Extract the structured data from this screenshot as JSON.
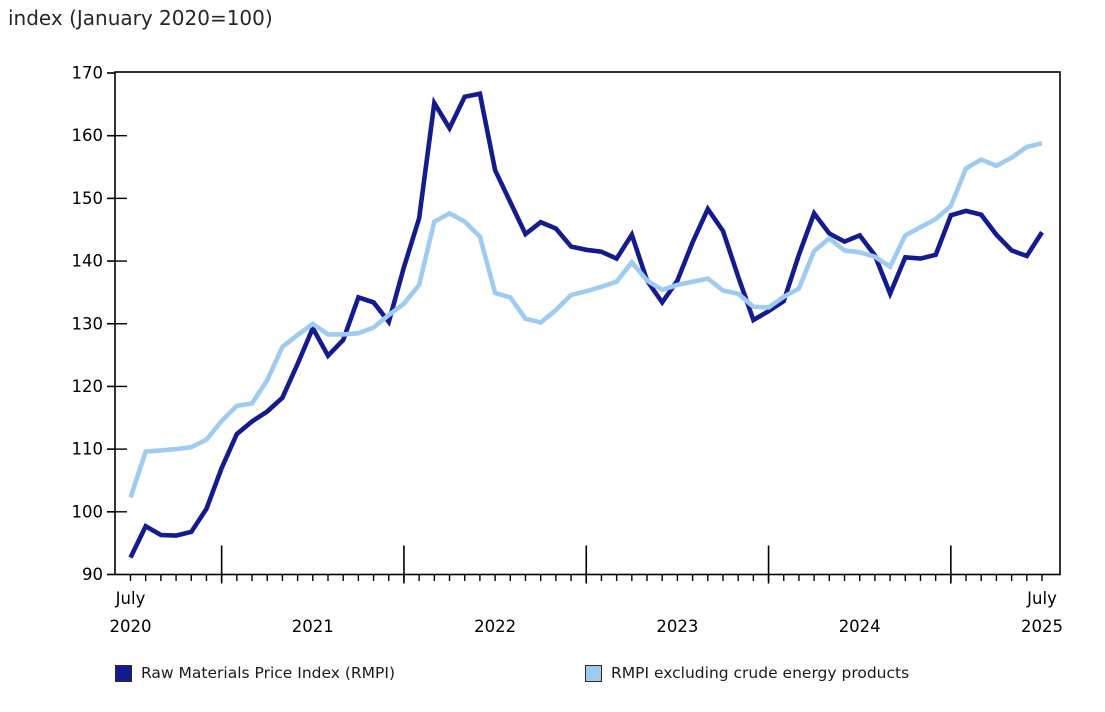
{
  "title": "index (January 2020=100)",
  "legend": {
    "items": [
      {
        "label": "Raw Materials Price Index (RMPI)",
        "color": "#141b8f"
      },
      {
        "label": "RMPI excluding crude energy products",
        "color": "#a0cbf0"
      }
    ]
  },
  "chart_data": {
    "type": "line",
    "title": "index (January 2020=100)",
    "x_unit": "month",
    "x_start": "2020-07",
    "x_end": "2025-07",
    "ylim": [
      90,
      170
    ],
    "y_ticks": [
      90,
      100,
      110,
      120,
      130,
      140,
      150,
      160,
      170
    ],
    "x_tick_labels": [
      {
        "line1": "July",
        "line2": "2020",
        "month_index": 0
      },
      {
        "line1": "",
        "line2": "2021",
        "month_index": 12
      },
      {
        "line1": "",
        "line2": "2022",
        "month_index": 24
      },
      {
        "line1": "",
        "line2": "2023",
        "month_index": 36
      },
      {
        "line1": "",
        "line2": "2024",
        "month_index": 48
      },
      {
        "line1": "July",
        "line2": "2025",
        "month_index": 60
      }
    ],
    "major_tick_month_indices": [
      6,
      18,
      30,
      42,
      54
    ],
    "grid": false,
    "legend_position": "bottom",
    "series": [
      {
        "name": "Raw Materials Price Index (RMPI)",
        "color": "#141b8f",
        "values": [
          92.7,
          97.7,
          96.3,
          96.2,
          96.8,
          100.5,
          107.0,
          112.4,
          114.4,
          116.0,
          118.2,
          123.6,
          129.3,
          124.9,
          127.4,
          134.2,
          133.4,
          130.3,
          139.0,
          146.8,
          165.2,
          161.2,
          166.2,
          166.7,
          154.5,
          149.4,
          144.3,
          146.2,
          145.2,
          142.3,
          141.8,
          141.5,
          140.4,
          144.2,
          136.9,
          133.4,
          136.9,
          143.0,
          148.3,
          144.8,
          137.5,
          130.6,
          132.0,
          133.6,
          141.0,
          147.6,
          144.4,
          143.1,
          144.1,
          140.9,
          134.8,
          140.6,
          140.4,
          141.0,
          147.3,
          148.0,
          147.4,
          144.2,
          141.7,
          140.8,
          144.6
        ]
      },
      {
        "name": "RMPI excluding crude energy products",
        "color": "#a0cbf0",
        "values": [
          102.3,
          109.6,
          109.8,
          110.0,
          110.3,
          111.5,
          114.5,
          116.9,
          117.3,
          121.0,
          126.3,
          128.2,
          130.0,
          128.3,
          128.3,
          128.5,
          129.4,
          131.4,
          133.2,
          136.2,
          146.3,
          147.6,
          146.3,
          143.9,
          134.9,
          134.2,
          130.8,
          130.2,
          132.2,
          134.6,
          135.2,
          135.9,
          136.7,
          139.8,
          136.9,
          135.4,
          136.2,
          136.7,
          137.2,
          135.3,
          134.8,
          132.7,
          132.6,
          134.3,
          135.6,
          141.6,
          143.6,
          141.7,
          141.4,
          140.7,
          139.1,
          144.1,
          145.4,
          146.7,
          148.8,
          154.8,
          156.2,
          155.2,
          156.5,
          158.2,
          158.8
        ]
      }
    ]
  }
}
